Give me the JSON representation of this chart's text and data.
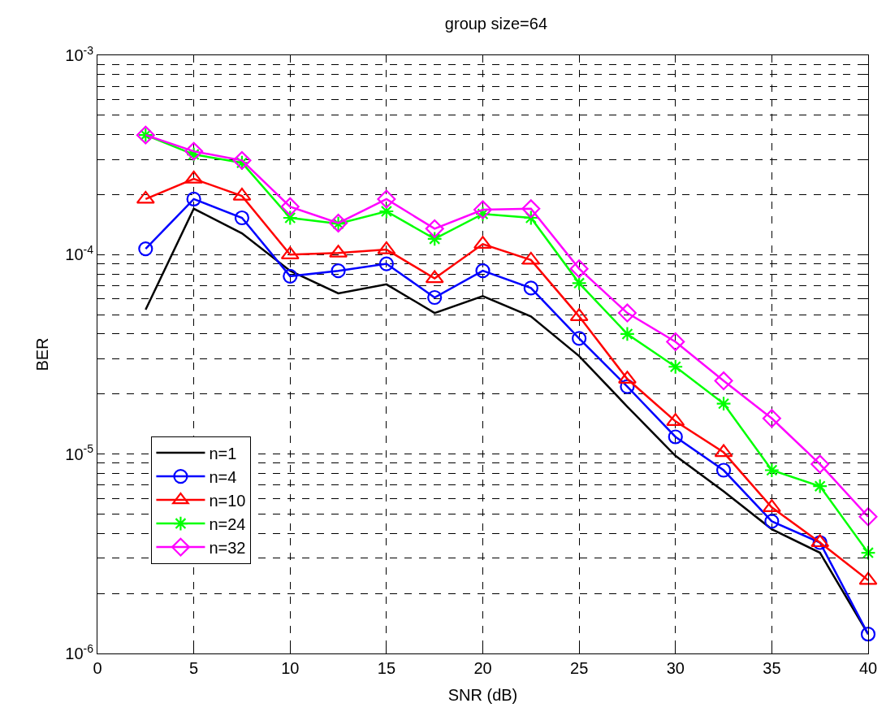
{
  "chart_data": {
    "type": "line",
    "title": "group size=64",
    "xlabel": "SNR (dB)",
    "ylabel": "BER",
    "x": [
      2.5,
      5,
      7.5,
      10,
      12.5,
      15,
      17.5,
      20,
      22.5,
      25,
      27.5,
      30,
      32.5,
      35,
      37.5,
      40
    ],
    "series": [
      {
        "name": "n=1",
        "color": "#000000",
        "marker": "none",
        "values": [
          5.3e-05,
          0.00017,
          0.000128,
          8.3e-05,
          6.4e-05,
          7.1e-05,
          5.1e-05,
          6.2e-05,
          4.9e-05,
          3.1e-05,
          1.73e-05,
          9.8e-06,
          6.5e-06,
          4.2e-06,
          3.2e-06,
          1.25e-06
        ]
      },
      {
        "name": "n=4",
        "color": "#0000ff",
        "marker": "circle",
        "values": [
          0.000107,
          0.00019,
          0.000153,
          7.8e-05,
          8.3e-05,
          9e-05,
          6.1e-05,
          8.3e-05,
          6.8e-05,
          3.8e-05,
          2.18e-05,
          1.22e-05,
          8.3e-06,
          4.6e-06,
          3.6e-06,
          1.25e-06
        ]
      },
      {
        "name": "n=10",
        "color": "#ff0000",
        "marker": "triangle",
        "values": [
          0.00019,
          0.00024,
          0.000197,
          0.0001,
          0.000102,
          0.000106,
          7.6e-05,
          0.000113,
          9.4e-05,
          4.9e-05,
          2.38e-05,
          1.46e-05,
          1.02e-05,
          5.4e-06,
          3.6e-06,
          2.33e-06
        ]
      },
      {
        "name": "n=24",
        "color": "#00ff00",
        "marker": "cross",
        "values": [
          0.000398,
          0.000318,
          0.000289,
          0.000153,
          0.000143,
          0.000165,
          0.00012,
          0.00016,
          0.000153,
          7.2e-05,
          4e-05,
          2.74e-05,
          1.79e-05,
          8.3e-06,
          6.9e-06,
          3.2e-06
        ]
      },
      {
        "name": "n=32",
        "color": "#ff00ff",
        "marker": "diamond",
        "values": [
          0.000398,
          0.00033,
          0.000297,
          0.000174,
          0.000144,
          0.00019,
          0.000135,
          0.000168,
          0.00017,
          8.5e-05,
          5.1e-05,
          3.66e-05,
          2.33e-05,
          1.51e-05,
          8.9e-06,
          4.85e-06
        ]
      }
    ],
    "xlim": [
      0,
      40
    ],
    "xticks": [
      0,
      5,
      10,
      15,
      20,
      25,
      30,
      35,
      40
    ],
    "ylim": [
      1e-06,
      0.001
    ],
    "yticks": [
      {
        "value": 1e-06,
        "label": "10$^{-6}$"
      },
      {
        "value": 1e-05,
        "label": "10$^{-5}$"
      },
      {
        "value": 0.0001,
        "label": "10$^{-4}$"
      },
      {
        "value": 0.001,
        "label": "10$^{-3}$"
      }
    ],
    "log": "y",
    "grid": true,
    "legend": "bottom left",
    "line_style": "solid"
  }
}
